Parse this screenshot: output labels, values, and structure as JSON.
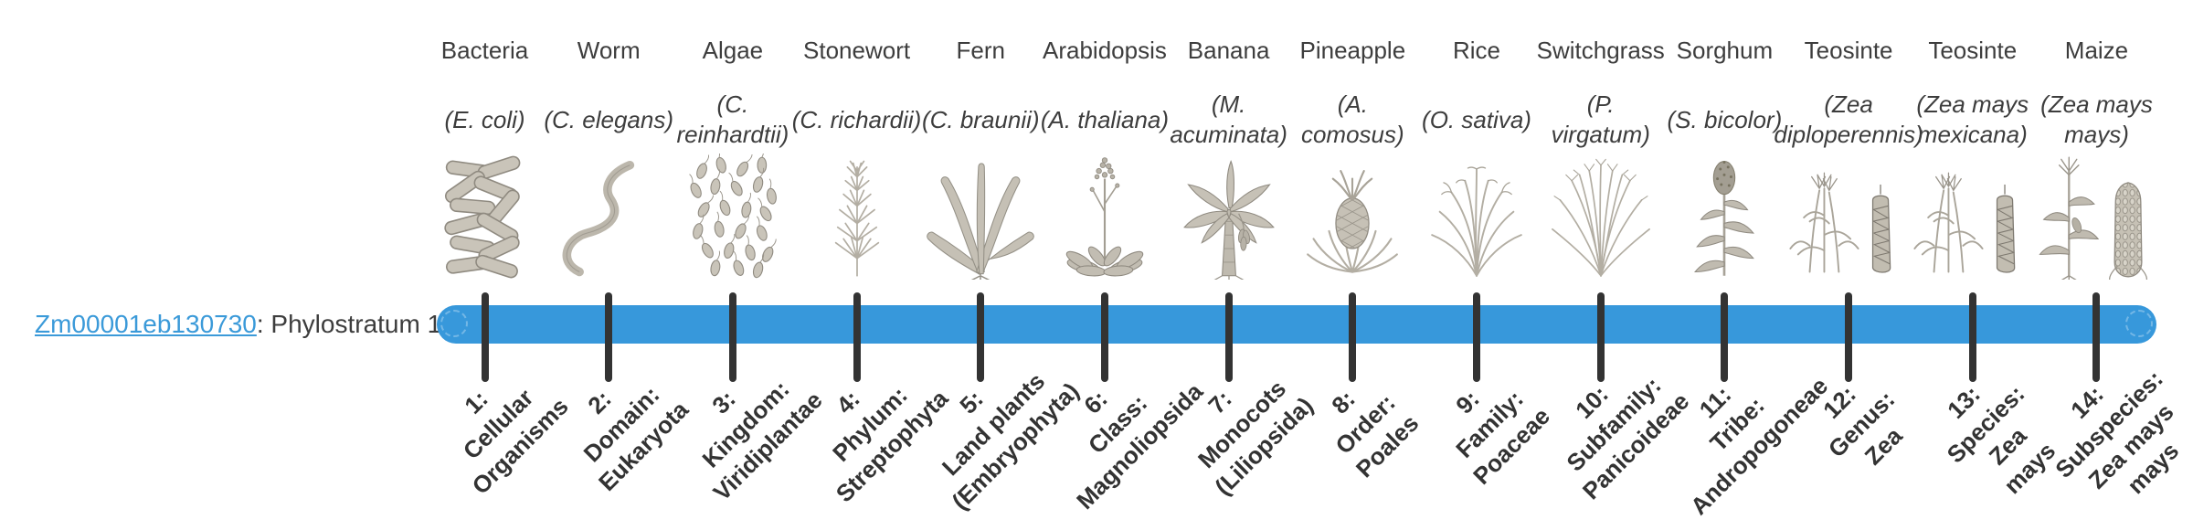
{
  "gene": {
    "id": "Zm00001eb130730",
    "stratum_text": ": Phylostratum 1"
  },
  "colors": {
    "bar": "#3798db",
    "tick": "#333333",
    "link": "#3b9ad9",
    "text": "#3d3d3d"
  },
  "organisms": [
    {
      "name": "Bacteria",
      "scientific_name": "(E. coli)",
      "stage_label": "1:\nCellular\nOrganisms",
      "icon": "bacteria"
    },
    {
      "name": "Worm",
      "scientific_name": "(C. elegans)",
      "stage_label": "2:\nDomain:\nEukaryota",
      "icon": "worm"
    },
    {
      "name": "Algae",
      "scientific_name": "(C.\nreinhardtii)",
      "stage_label": "3:\nKingdom:\nViridiplantae",
      "icon": "algae"
    },
    {
      "name": "Stonewort",
      "scientific_name": "(C. richardii)",
      "stage_label": "4:\nPhylum:\nStreptophyta",
      "icon": "stonewort"
    },
    {
      "name": "Fern",
      "scientific_name": "(C. braunii)",
      "stage_label": "5:\nLand plants\n(Embryophyta)",
      "icon": "fern"
    },
    {
      "name": "Arabidopsis",
      "scientific_name": "(A. thaliana)",
      "stage_label": "6:\nClass:\nMagnoliopsida",
      "icon": "arabidopsis"
    },
    {
      "name": "Banana",
      "scientific_name": "(M.\nacuminata)",
      "stage_label": "7:\nMonocots\n(Liliopsida)",
      "icon": "banana"
    },
    {
      "name": "Pineapple",
      "scientific_name": "(A.\ncomosus)",
      "stage_label": "8:\nOrder:\nPoales",
      "icon": "pineapple"
    },
    {
      "name": "Rice",
      "scientific_name": "(O. sativa)",
      "stage_label": "9:\nFamily:\nPoaceae",
      "icon": "rice"
    },
    {
      "name": "Switchgrass",
      "scientific_name": "(P.\nvirgatum)",
      "stage_label": "10:\nSubfamily:\nPanicoideae",
      "icon": "switchgrass"
    },
    {
      "name": "Sorghum",
      "scientific_name": "(S. bicolor)",
      "stage_label": "11:\nTribe:\nAndropogoneae",
      "icon": "sorghum"
    },
    {
      "name": "Teosinte",
      "scientific_name": "(Zea\ndiploperennis)",
      "stage_label": "12:\nGenus:\nZea",
      "icon": "teosinte"
    },
    {
      "name": "Teosinte",
      "scientific_name": "(Zea mays\nmexicana)",
      "stage_label": "13:\nSpecies:\nZea\nmays",
      "icon": "teosinte"
    },
    {
      "name": "Maize",
      "scientific_name": "(Zea mays\nmays)",
      "stage_label": "14:\nSubspecies:\nZea mays\nmays",
      "icon": "maize"
    }
  ]
}
